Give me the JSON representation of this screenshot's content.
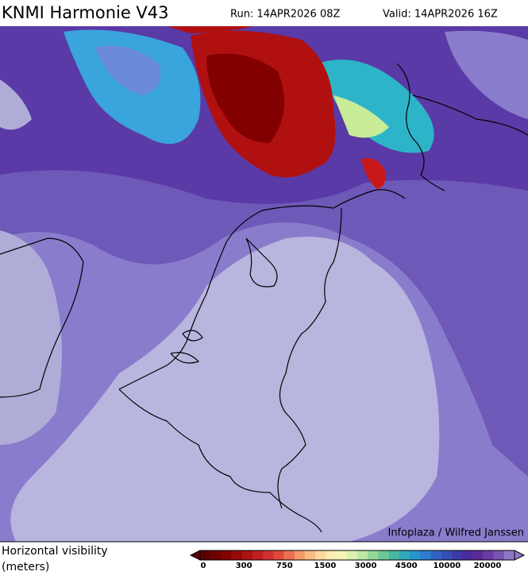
{
  "header": {
    "title": "KNMI Harmonie V43",
    "run": "Run: 14APR2026 08Z",
    "valid": "Valid: 14APR2026 16Z"
  },
  "map": {
    "credit": "Infoplaza / Wilfred Janssen"
  },
  "legend": {
    "label_line1": "Horizontal visibility",
    "label_line2": "(meters)",
    "ticks": [
      0,
      300,
      750,
      1500,
      3000,
      4500,
      10000,
      20000
    ],
    "colors": [
      "#5a0000",
      "#6e0000",
      "#820000",
      "#960a0a",
      "#aa1414",
      "#be2020",
      "#d03030",
      "#e04a3a",
      "#ec7050",
      "#f49a68",
      "#f8bc84",
      "#fcd8a0",
      "#fcecb4",
      "#f4f4b8",
      "#dcf0b0",
      "#bce6a4",
      "#94d898",
      "#6cc894",
      "#48b8a0",
      "#30a8b8",
      "#2894cc",
      "#2c7cd0",
      "#3064c4",
      "#3450b4",
      "#3c3ca8",
      "#4a2c9c",
      "#5a2a98",
      "#6a3aa4",
      "#7a54b4",
      "#8e78c6"
    ]
  }
}
